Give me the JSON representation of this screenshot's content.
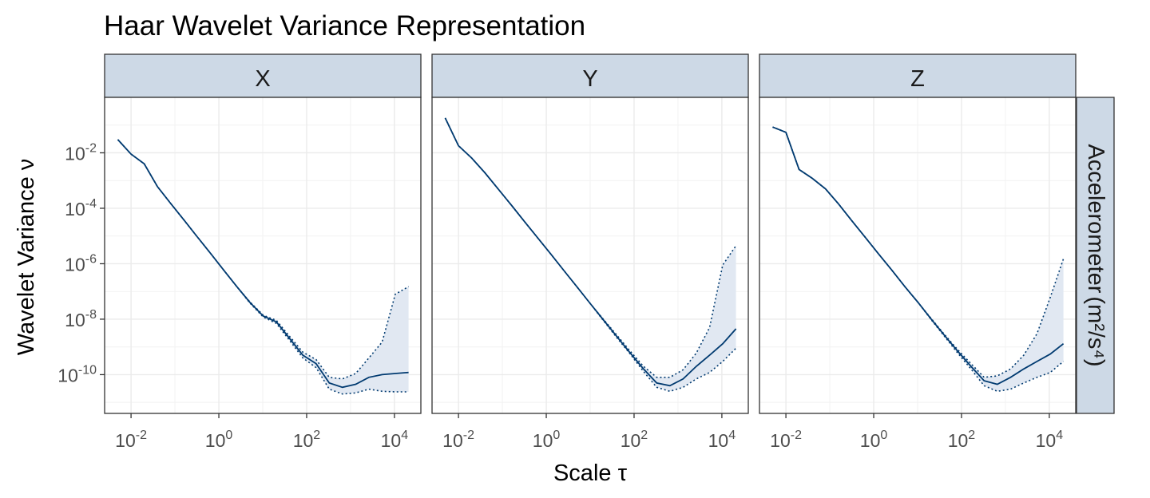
{
  "title": "Haar Wavelet Variance Representation",
  "xlabel": "Scale τ",
  "ylabel": "Wavelet Variance ν",
  "strip_right": "Accelerometer",
  "strip_right_units": "(m²/s⁴)",
  "colors": {
    "line": "#003a70",
    "band": "#e1e8f2",
    "strip": "#cdd9e6",
    "grid": "#ebebeb",
    "border": "#333333"
  },
  "chart_data": {
    "type": "line",
    "xscale": "log10",
    "yscale": "log10",
    "xlim": [
      0.0025,
      40000
    ],
    "ylim": [
      4e-12,
      1
    ],
    "xticks": [
      0.01,
      1,
      100,
      10000
    ],
    "xtick_labels": [
      {
        "base": "10",
        "exp": "-2"
      },
      {
        "base": "10",
        "exp": "0"
      },
      {
        "base": "10",
        "exp": "2"
      },
      {
        "base": "10",
        "exp": "4"
      }
    ],
    "yticks": [
      1e-10,
      1e-08,
      1e-06,
      0.0001,
      0.01
    ],
    "ytick_labels": [
      {
        "base": "10",
        "exp": "-10"
      },
      {
        "base": "10",
        "exp": "-8"
      },
      {
        "base": "10",
        "exp": "-6"
      },
      {
        "base": "10",
        "exp": "-4"
      },
      {
        "base": "10",
        "exp": "-2"
      }
    ],
    "grid": true,
    "panels": [
      {
        "label": "X",
        "tau": [
          0.005,
          0.01,
          0.02,
          0.04,
          0.08,
          0.16,
          0.32,
          0.64,
          1.28,
          2.56,
          5.12,
          10.24,
          20.48,
          40.96,
          81.92,
          163.84,
          327.68,
          655.36,
          1310.72,
          2621.44,
          5242.88,
          10485.76,
          20971.52
        ],
        "wv": [
          0.03,
          0.009,
          0.004,
          0.0006,
          0.00015,
          3.8e-05,
          9.5e-06,
          2.4e-06,
          6e-07,
          1.5e-07,
          4e-08,
          1.3e-08,
          8e-09,
          2e-09,
          5e-10,
          2.5e-10,
          5e-11,
          3.5e-11,
          4.5e-11,
          8e-11,
          1e-10,
          1.1e-10,
          1.2e-10
        ],
        "lower": [
          0.03,
          0.009,
          0.004,
          0.0006,
          0.00015,
          3.8e-05,
          9.5e-06,
          2.4e-06,
          6e-07,
          1.5e-07,
          3.8e-08,
          1.2e-08,
          7e-09,
          1.7e-09,
          4e-10,
          1.8e-10,
          3e-11,
          2e-11,
          2.2e-11,
          3e-11,
          2.5e-11,
          2.4e-11,
          2.4e-11
        ],
        "upper": [
          0.03,
          0.009,
          0.004,
          0.0006,
          0.00015,
          3.8e-05,
          9.5e-06,
          2.4e-06,
          6e-07,
          1.5e-07,
          4.2e-08,
          1.4e-08,
          9e-09,
          2.4e-09,
          6.5e-10,
          3.5e-10,
          8e-11,
          7e-11,
          1.1e-10,
          4e-10,
          1.5e-09,
          8e-08,
          1.5e-07
        ]
      },
      {
        "label": "Y",
        "tau": [
          0.005,
          0.01,
          0.02,
          0.04,
          0.08,
          0.16,
          0.32,
          0.64,
          1.28,
          2.56,
          5.12,
          10.24,
          20.48,
          40.96,
          81.92,
          163.84,
          327.68,
          655.36,
          1310.72,
          2621.44,
          5242.88,
          10485.76,
          20971.52
        ],
        "wv": [
          0.18,
          0.018,
          0.0065,
          0.0019,
          0.0005,
          0.00013,
          3.3e-05,
          8.5e-06,
          2.2e-06,
          5.5e-07,
          1.4e-07,
          3.5e-08,
          9e-09,
          2.3e-09,
          6e-10,
          1.6e-10,
          5e-11,
          4e-11,
          7e-11,
          2e-10,
          5e-10,
          1.3e-09,
          4.5e-09
        ],
        "lower": [
          0.18,
          0.018,
          0.0065,
          0.0019,
          0.0005,
          0.00013,
          3.3e-05,
          8.5e-06,
          2.2e-06,
          5.5e-07,
          1.4e-07,
          3.5e-08,
          8.5e-09,
          2.1e-09,
          5.5e-10,
          1.3e-10,
          3.5e-11,
          2.5e-11,
          3.5e-11,
          7e-11,
          1.2e-10,
          3e-10,
          9e-10
        ],
        "upper": [
          0.18,
          0.018,
          0.0065,
          0.0019,
          0.0005,
          0.00013,
          3.3e-05,
          8.5e-06,
          2.2e-06,
          5.5e-07,
          1.4e-07,
          3.5e-08,
          9.5e-09,
          2.6e-09,
          7e-10,
          2e-10,
          8e-11,
          8e-11,
          1.5e-10,
          6e-10,
          5e-09,
          9e-07,
          4.5e-06
        ]
      },
      {
        "label": "Z",
        "tau": [
          0.005,
          0.01,
          0.02,
          0.04,
          0.08,
          0.16,
          0.32,
          0.64,
          1.28,
          2.56,
          5.12,
          10.24,
          20.48,
          40.96,
          81.92,
          163.84,
          327.68,
          655.36,
          1310.72,
          2621.44,
          5242.88,
          10485.76,
          20971.52
        ],
        "wv": [
          0.085,
          0.055,
          0.0025,
          0.0012,
          0.0005,
          0.00014,
          3.5e-05,
          9e-06,
          2.3e-06,
          6e-07,
          1.5e-07,
          4e-08,
          1e-08,
          2.6e-09,
          7e-10,
          2e-10,
          6e-11,
          4.5e-11,
          8e-11,
          1.6e-10,
          3e-10,
          5.5e-10,
          1.3e-09
        ],
        "lower": [
          0.085,
          0.055,
          0.0025,
          0.0012,
          0.0005,
          0.00014,
          3.5e-05,
          9e-06,
          2.3e-06,
          6e-07,
          1.5e-07,
          4e-08,
          9.5e-09,
          2.4e-09,
          6e-10,
          1.6e-10,
          4e-11,
          2.5e-11,
          3e-11,
          5e-11,
          8e-11,
          1.2e-10,
          3e-10
        ],
        "upper": [
          0.085,
          0.055,
          0.0025,
          0.0012,
          0.0005,
          0.00014,
          3.5e-05,
          9e-06,
          2.3e-06,
          6e-07,
          1.5e-07,
          4e-08,
          1.05e-08,
          2.8e-09,
          8e-10,
          2.5e-10,
          8e-11,
          9e-11,
          1.6e-10,
          5e-10,
          3e-09,
          6e-08,
          1.5e-06
        ]
      }
    ]
  }
}
